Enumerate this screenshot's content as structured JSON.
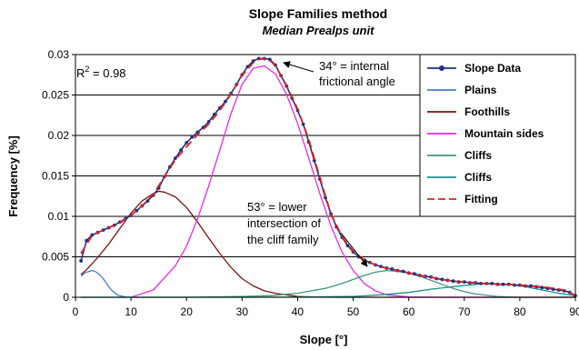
{
  "chart_data": {
    "type": "line",
    "title": "Slope Families method",
    "subtitle": "Median Prealps unit",
    "xlabel": "Slope [°]",
    "ylabel": "Frequency [%]",
    "xlim": [
      0,
      90
    ],
    "ylim": [
      0,
      0.03
    ],
    "xticks": [
      "0",
      "10",
      "20",
      "30",
      "40",
      "50",
      "60",
      "70",
      "80",
      "90"
    ],
    "yticks": [
      "0",
      "0.005",
      "0.01",
      "0.015",
      "0.02",
      "0.025",
      "0.03"
    ],
    "grid": "horizontal",
    "legend_position": "right",
    "r2_prefix": "R",
    "r2_sup": "2",
    "r2_rest": " = 0.98",
    "annotations": [
      {
        "lines": [
          "34° = internal",
          "frictional angle"
        ]
      },
      {
        "lines": [
          "53° = lower",
          "intersection of",
          "the cliff family"
        ]
      }
    ],
    "series": [
      {
        "name": "Slope Data",
        "color": "#1f2f86",
        "style": "line-markers",
        "x": [
          1,
          2,
          3,
          4,
          5,
          6,
          7,
          8,
          9,
          10,
          11,
          12,
          13,
          14,
          15,
          16,
          17,
          18,
          19,
          20,
          21,
          22,
          23,
          24,
          25,
          26,
          27,
          28,
          29,
          30,
          31,
          32,
          33,
          34,
          35,
          36,
          37,
          38,
          39,
          40,
          41,
          42,
          43,
          44,
          45,
          46,
          47,
          48,
          49,
          50,
          51,
          52,
          53,
          54,
          55,
          56,
          57,
          58,
          59,
          60,
          61,
          62,
          63,
          64,
          65,
          66,
          67,
          68,
          69,
          70,
          71,
          72,
          73,
          74,
          75,
          76,
          77,
          78,
          79,
          80,
          81,
          82,
          83,
          84,
          85,
          86,
          87,
          88,
          89,
          90
        ],
        "y": [
          0.0045,
          0.007,
          0.0077,
          0.008,
          0.0083,
          0.0086,
          0.0089,
          0.0093,
          0.0097,
          0.0101,
          0.0107,
          0.0113,
          0.0119,
          0.0126,
          0.0135,
          0.0149,
          0.0161,
          0.0172,
          0.0182,
          0.0191,
          0.0198,
          0.0204,
          0.021,
          0.0217,
          0.0226,
          0.0234,
          0.0242,
          0.0252,
          0.0263,
          0.0275,
          0.0285,
          0.0292,
          0.0295,
          0.0295,
          0.0294,
          0.0287,
          0.0274,
          0.0261,
          0.0246,
          0.0231,
          0.0214,
          0.0192,
          0.0169,
          0.0146,
          0.0123,
          0.0103,
          0.0087,
          0.0074,
          0.0064,
          0.0056,
          0.005,
          0.0046,
          0.0043,
          0.004,
          0.0038,
          0.0036,
          0.0035,
          0.0033,
          0.0032,
          0.003,
          0.0029,
          0.0027,
          0.0026,
          0.0025,
          0.0023,
          0.0022,
          0.0021,
          0.002,
          0.0019,
          0.0019,
          0.0018,
          0.0018,
          0.0017,
          0.0017,
          0.0017,
          0.0016,
          0.0016,
          0.0016,
          0.0015,
          0.0015,
          0.0014,
          0.0014,
          0.0013,
          0.0012,
          0.0011,
          0.001,
          0.0009,
          0.0008,
          0.0006,
          0.0002
        ]
      },
      {
        "name": "Plains",
        "color": "#4a7ec8",
        "style": "line",
        "x": [
          1,
          1.5,
          2,
          2.5,
          3,
          3.5,
          4,
          4.5,
          5,
          5.5,
          6,
          6.5,
          7,
          7.5,
          8,
          9,
          10
        ],
        "y": [
          0.0026,
          0.0029,
          0.0031,
          0.0032,
          0.0033,
          0.0032,
          0.003,
          0.0027,
          0.0023,
          0.0018,
          0.0013,
          0.0009,
          0.0006,
          0.0003,
          0.0002,
          5e-05,
          0.0
        ]
      },
      {
        "name": "Foothills",
        "color": "#7b1410",
        "style": "line",
        "x": [
          1,
          2,
          4,
          6,
          8,
          10,
          12,
          14,
          15,
          16,
          18,
          20,
          22,
          24,
          26,
          28,
          30,
          32,
          34,
          36,
          38,
          40,
          44,
          48,
          52,
          56,
          60,
          66,
          72,
          80,
          90
        ],
        "y": [
          0.0028,
          0.0034,
          0.0049,
          0.0066,
          0.0085,
          0.0104,
          0.0119,
          0.0128,
          0.0131,
          0.013,
          0.0124,
          0.0111,
          0.0093,
          0.0073,
          0.0054,
          0.0037,
          0.0023,
          0.0014,
          0.0008,
          0.0005,
          0.0003,
          0.0001,
          2e-05,
          0.0,
          0.0,
          0.0,
          0.0,
          0.0,
          0.0,
          0.0,
          0.0
        ]
      },
      {
        "name": "Mountain sides",
        "color": "#ec28e4",
        "style": "line",
        "x": [
          10,
          14,
          18,
          20,
          22,
          24,
          26,
          28,
          30,
          32,
          34,
          36,
          38,
          40,
          42,
          44,
          46,
          48,
          50,
          52,
          54,
          56,
          60,
          66,
          72,
          80,
          90
        ],
        "y": [
          0.0,
          0.0009,
          0.0039,
          0.0063,
          0.0097,
          0.0138,
          0.0182,
          0.0227,
          0.0263,
          0.0283,
          0.0286,
          0.0276,
          0.0251,
          0.0215,
          0.0172,
          0.0128,
          0.0088,
          0.0056,
          0.0033,
          0.0017,
          0.0008,
          0.0003,
          5e-05,
          0.0,
          0.0,
          0.0,
          0.0
        ]
      },
      {
        "name": "Cliffs",
        "color": "#3c9a73",
        "style": "line",
        "x": [
          1,
          20,
          30,
          35,
          40,
          45,
          48,
          50,
          52,
          54,
          56,
          58,
          60,
          62,
          64,
          66,
          68,
          70,
          72,
          76,
          80,
          90
        ],
        "y": [
          0.0,
          0.0,
          0.0001,
          0.0002,
          0.0005,
          0.0011,
          0.0017,
          0.0022,
          0.0027,
          0.0031,
          0.0033,
          0.0032,
          0.003,
          0.0026,
          0.0021,
          0.0016,
          0.0011,
          0.0007,
          0.0004,
          0.0001,
          0.0,
          0.0
        ]
      },
      {
        "name": "Cliffs",
        "color": "#178f87",
        "style": "line",
        "x": [
          1,
          30,
          40,
          50,
          55,
          60,
          64,
          68,
          72,
          75,
          78,
          81,
          84,
          87,
          90
        ],
        "y": [
          0.0,
          0.0,
          2e-05,
          0.0001,
          0.0003,
          0.0006,
          0.001,
          0.0013,
          0.0016,
          0.0017,
          0.0016,
          0.0013,
          0.0009,
          0.0005,
          0.0002
        ]
      },
      {
        "name": "Fitting",
        "color": "#e02020",
        "style": "dashed",
        "x": [
          1,
          2,
          3,
          4,
          5,
          6,
          8,
          10,
          12,
          14,
          16,
          18,
          20,
          22,
          24,
          26,
          28,
          30,
          32,
          33,
          34,
          35,
          36,
          38,
          40,
          42,
          44,
          46,
          48,
          50,
          52,
          54,
          56,
          58,
          60,
          62,
          64,
          66,
          68,
          70,
          72,
          74,
          76,
          78,
          80,
          82,
          84,
          86,
          88,
          89,
          90
        ],
        "y": [
          0.0054,
          0.0065,
          0.0076,
          0.008,
          0.0083,
          0.0086,
          0.0092,
          0.0101,
          0.0113,
          0.0127,
          0.0149,
          0.017,
          0.0186,
          0.0201,
          0.0214,
          0.0231,
          0.0251,
          0.0274,
          0.029,
          0.0294,
          0.0295,
          0.0293,
          0.0286,
          0.0262,
          0.0233,
          0.0195,
          0.0148,
          0.0103,
          0.0075,
          0.0057,
          0.0046,
          0.004,
          0.0036,
          0.0033,
          0.003,
          0.0027,
          0.0025,
          0.0022,
          0.002,
          0.0019,
          0.0018,
          0.0017,
          0.0016,
          0.0016,
          0.0015,
          0.0014,
          0.0013,
          0.0011,
          0.0009,
          0.0006,
          0.0002
        ]
      }
    ]
  }
}
